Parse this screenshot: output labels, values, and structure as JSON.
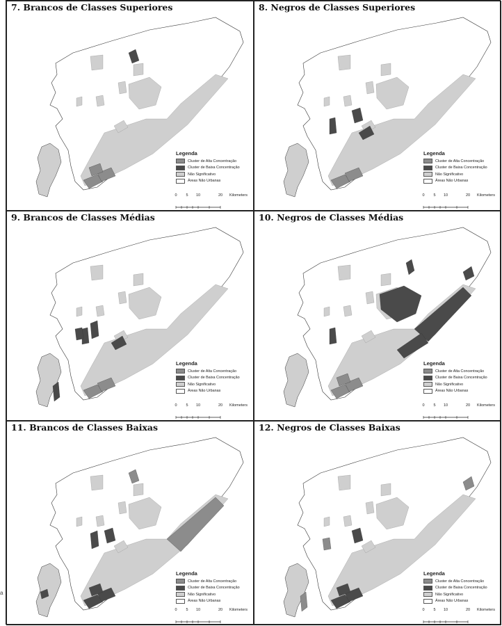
{
  "panels": [
    {
      "title": "7. Brancos de Classes Superiores",
      "highlight": [
        13,
        14,
        15
      ],
      "dark": [],
      "dark_mid": [
        7
      ]
    },
    {
      "title": "8. Negros de Classes Superiores",
      "highlight": [
        13,
        14
      ],
      "dark": [
        4,
        5,
        6
      ],
      "dark_mid": []
    },
    {
      "title": "9. Brancos de Classes Médias",
      "highlight": [
        13,
        14
      ],
      "dark": [
        2,
        3,
        4,
        6,
        11
      ],
      "dark_mid": []
    },
    {
      "title": "10. Negros de Classes Médias",
      "highlight": [
        13,
        14,
        15
      ],
      "dark": [
        1,
        4,
        8,
        9,
        10,
        12
      ],
      "dark_mid": []
    },
    {
      "title": "11. Brancos de Classes Baixas",
      "highlight": [
        7,
        9
      ],
      "dark": [
        0,
        3,
        5,
        13,
        14,
        15
      ],
      "dark_mid": []
    },
    {
      "title": "12. Negros de Classes Baixas",
      "highlight": [
        2,
        11,
        12
      ],
      "dark": [
        5,
        13,
        14,
        15
      ],
      "dark_mid": []
    }
  ],
  "legend": {
    "title": "Legenda",
    "items": [
      {
        "label": "Cluster de Alta Concentração",
        "color": "#8c8c8c"
      },
      {
        "label": "Cluster de Baixa Concentração",
        "color": "#4a4a4a"
      },
      {
        "label": "Não Significativo",
        "color": "#cfcfcf"
      },
      {
        "label": "Áreas Não Urbanas",
        "color": "#ffffff"
      }
    ]
  },
  "scale": {
    "ticks": [
      "0",
      "5",
      "10",
      "20"
    ],
    "unit": "Kilometers"
  },
  "stray_mark": "a",
  "colors": {
    "outline": "#333333",
    "land": "#ffffff",
    "notsig": "#cfcfcf",
    "high": "#8c8c8c",
    "low": "#4a4a4a"
  }
}
